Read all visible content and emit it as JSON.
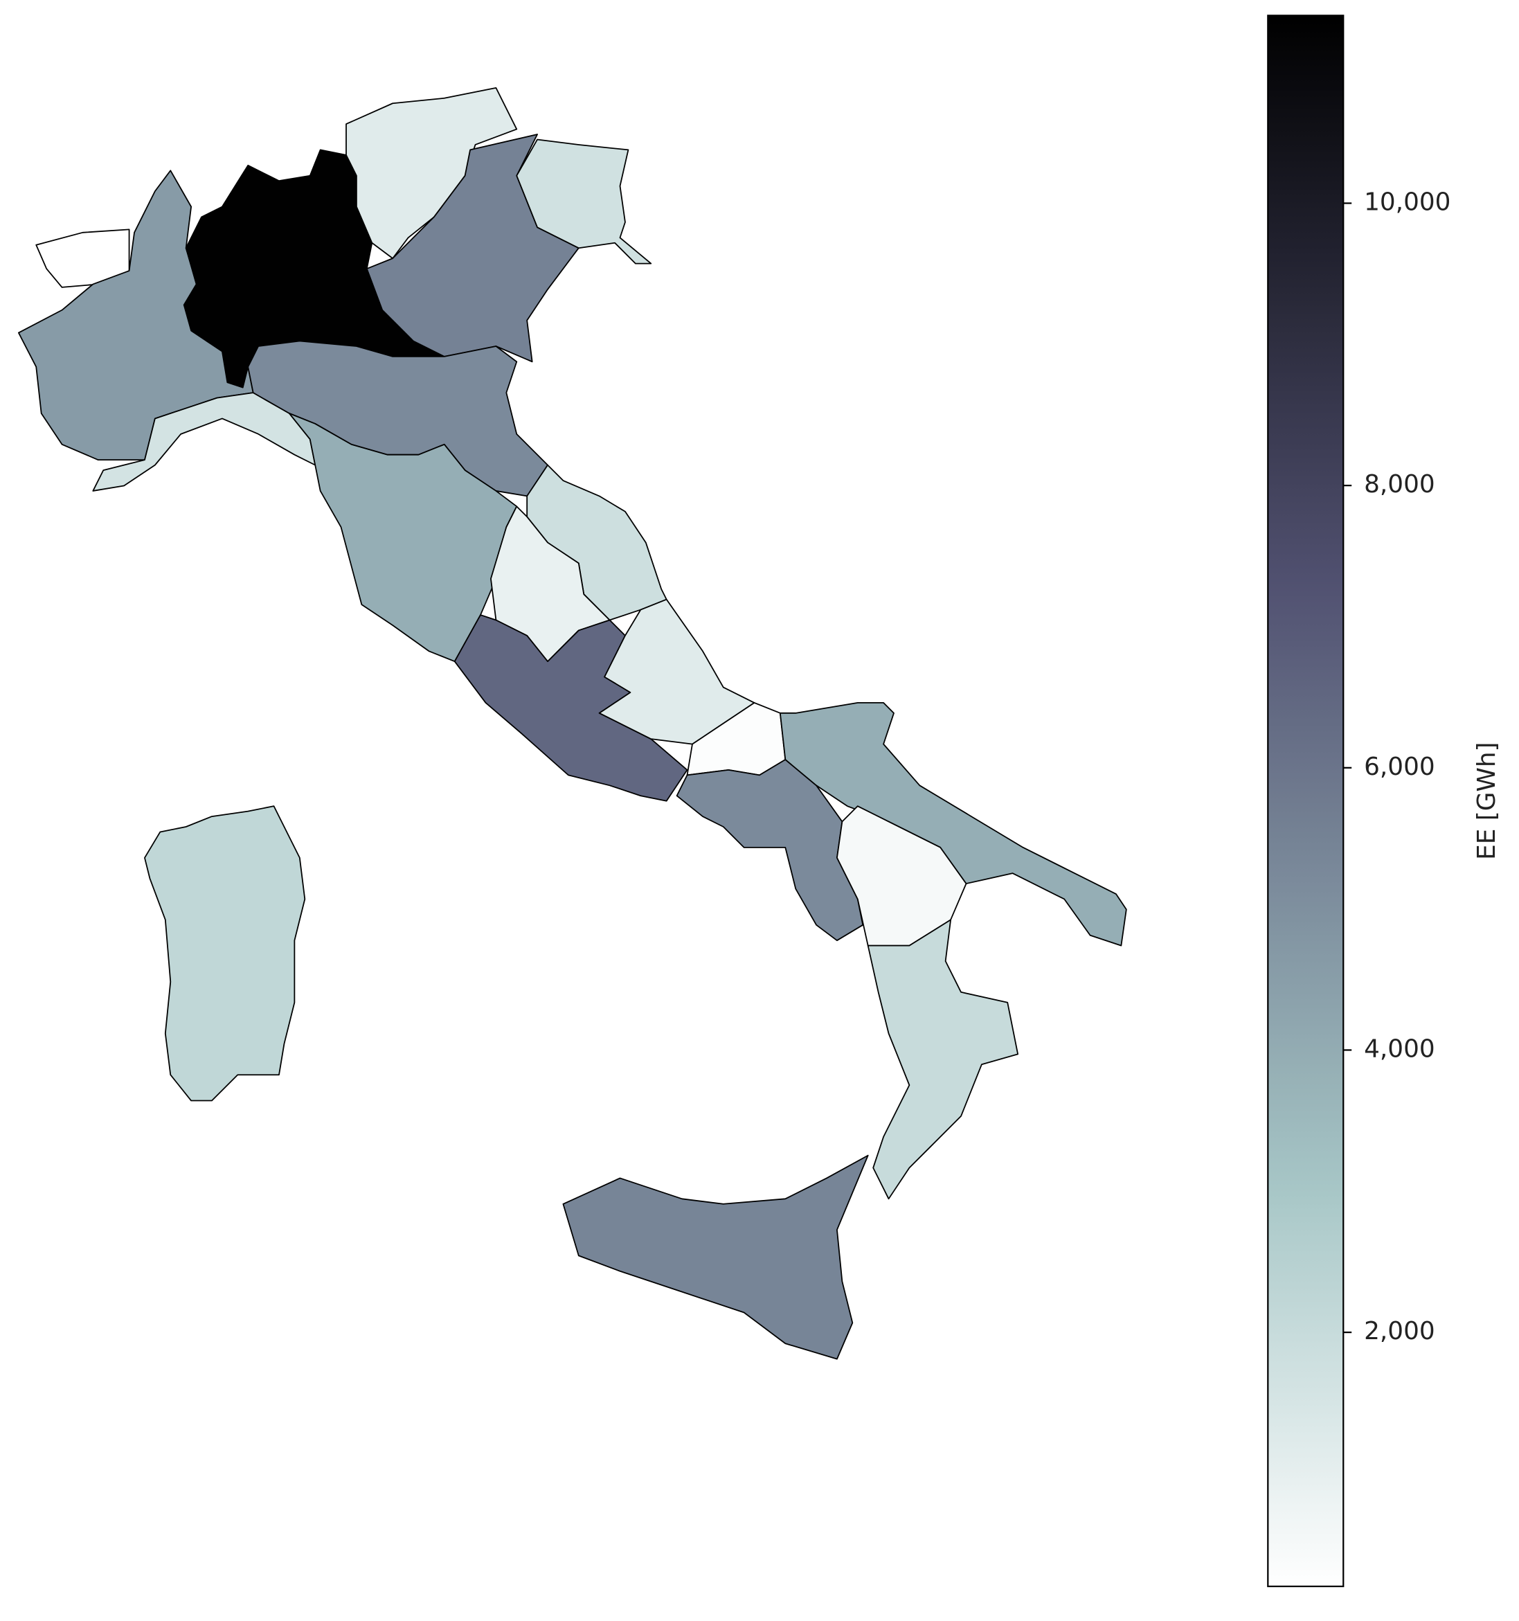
{
  "chart_data": {
    "type": "choropleth",
    "colormap": "bone_r",
    "values": [
      200,
      4600,
      11300,
      1200,
      5500,
      1700,
      1600,
      5200,
      3900,
      1800,
      900,
      6500,
      1200,
      300,
      5200,
      3900,
      500,
      2000,
      5400,
      2200
    ],
    "ylim": [
      200,
      11330
    ],
    "yticks": [
      {
        "value": 2000,
        "label": "2,000"
      },
      {
        "value": 4000,
        "label": "4,000"
      },
      {
        "value": 6000,
        "label": "6,000"
      },
      {
        "value": 8000,
        "label": "8,000"
      },
      {
        "value": 10000,
        "label": "10,000"
      }
    ],
    "ylabel": "EE [GWh]"
  }
}
